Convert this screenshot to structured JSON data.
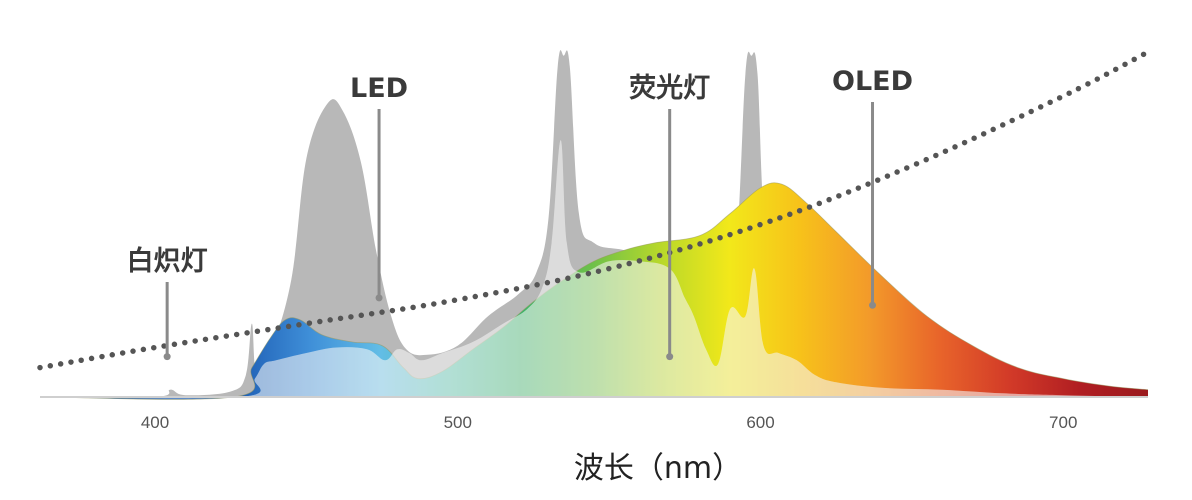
{
  "chart_data": {
    "type": "area",
    "xlabel": "波长（nm）",
    "ylabel": "",
    "xlim": [
      362,
      728
    ],
    "ylim": [
      0,
      100
    ],
    "grid": false,
    "legend": "none",
    "x_ticks": [
      400,
      500,
      600,
      700
    ],
    "series": [
      {
        "name": "白炽灯",
        "style": "dotted",
        "color": "#555555",
        "points": [
          [
            362,
            8
          ],
          [
            400,
            13.5
          ],
          [
            450,
            20
          ],
          [
            500,
            26.5
          ],
          [
            550,
            35
          ],
          [
            600,
            47
          ],
          [
            650,
            63
          ],
          [
            700,
            82
          ],
          [
            728,
            94
          ]
        ]
      },
      {
        "name": "LED",
        "style": "filled",
        "color": "#b8b8b8",
        "points": [
          [
            362,
            0
          ],
          [
            400,
            0
          ],
          [
            405,
            2
          ],
          [
            410,
            0.5
          ],
          [
            425,
            1.5
          ],
          [
            430,
            6
          ],
          [
            432,
            20
          ],
          [
            433.5,
            6
          ],
          [
            438,
            12
          ],
          [
            445,
            32
          ],
          [
            450,
            65
          ],
          [
            457,
            80
          ],
          [
            462,
            78
          ],
          [
            468,
            64
          ],
          [
            473,
            40
          ],
          [
            478,
            22
          ],
          [
            483,
            13
          ],
          [
            490,
            11.5
          ],
          [
            500,
            14
          ],
          [
            510,
            22
          ],
          [
            520,
            28
          ],
          [
            526,
            34
          ],
          [
            530,
            49
          ],
          [
            533,
            90
          ],
          [
            535,
            93
          ],
          [
            537,
            90
          ],
          [
            540,
            50
          ],
          [
            545,
            42
          ],
          [
            555,
            40
          ],
          [
            570,
            37
          ],
          [
            580,
            33
          ],
          [
            588,
            31
          ],
          [
            592,
            40
          ],
          [
            595,
            88
          ],
          [
            597,
            93
          ],
          [
            599,
            88
          ],
          [
            602,
            42
          ],
          [
            610,
            33
          ],
          [
            620,
            25
          ],
          [
            640,
            14
          ],
          [
            660,
            9
          ],
          [
            680,
            5
          ],
          [
            700,
            2.5
          ],
          [
            728,
            0.5
          ]
        ]
      },
      {
        "name": "荧光灯",
        "style": "filled",
        "color": "#d9d9d9",
        "points": [
          [
            362,
            0
          ],
          [
            428,
            0
          ],
          [
            433,
            5
          ],
          [
            436,
            9
          ],
          [
            440,
            10
          ],
          [
            450,
            12
          ],
          [
            460,
            13.5
          ],
          [
            470,
            13
          ],
          [
            476,
            10
          ],
          [
            480,
            13
          ],
          [
            484,
            12
          ],
          [
            488,
            10
          ],
          [
            495,
            12
          ],
          [
            505,
            15
          ],
          [
            515,
            20
          ],
          [
            523,
            24
          ],
          [
            528,
            30
          ],
          [
            531,
            42
          ],
          [
            534,
            70
          ],
          [
            536,
            42
          ],
          [
            540,
            34
          ],
          [
            550,
            37
          ],
          [
            560,
            37
          ],
          [
            570,
            35
          ],
          [
            575,
            27
          ],
          [
            578,
            22
          ],
          [
            582,
            13
          ],
          [
            586,
            9
          ],
          [
            590,
            24
          ],
          [
            595,
            22
          ],
          [
            598,
            35
          ],
          [
            601,
            14
          ],
          [
            606,
            12
          ],
          [
            612,
            10
          ],
          [
            618,
            6
          ],
          [
            625,
            4
          ],
          [
            640,
            2.5
          ],
          [
            660,
            2
          ],
          [
            680,
            1
          ],
          [
            700,
            0.5
          ],
          [
            728,
            0
          ]
        ]
      },
      {
        "name": "OLED",
        "style": "gradient-filled",
        "color": "#f5d000",
        "points": [
          [
            362,
            0
          ],
          [
            426,
            0
          ],
          [
            432,
            8
          ],
          [
            438,
            16
          ],
          [
            443,
            21
          ],
          [
            448,
            21
          ],
          [
            455,
            17
          ],
          [
            465,
            15
          ],
          [
            475,
            14
          ],
          [
            482,
            8
          ],
          [
            487,
            5
          ],
          [
            495,
            7
          ],
          [
            505,
            13
          ],
          [
            515,
            19
          ],
          [
            525,
            26
          ],
          [
            535,
            32
          ],
          [
            545,
            37
          ],
          [
            555,
            40
          ],
          [
            565,
            42
          ],
          [
            580,
            44
          ],
          [
            590,
            50
          ],
          [
            600,
            57
          ],
          [
            607,
            58
          ],
          [
            615,
            53
          ],
          [
            625,
            45
          ],
          [
            640,
            33
          ],
          [
            655,
            22
          ],
          [
            670,
            14
          ],
          [
            685,
            8
          ],
          [
            700,
            5
          ],
          [
            715,
            3
          ],
          [
            728,
            2
          ]
        ]
      }
    ],
    "annotations": [
      {
        "text": "白炽灯",
        "points_to": [
          404,
          11
        ]
      },
      {
        "text": "LED",
        "points_to": [
          474,
          27
        ]
      },
      {
        "text": "荧光灯",
        "points_to": [
          570,
          11
        ]
      },
      {
        "text": "OLED",
        "points_to": [
          637,
          25
        ]
      }
    ],
    "spectrum_colors": [
      "#1f5fb5",
      "#3f8fd8",
      "#62bde6",
      "#52c0a8",
      "#3bb36a",
      "#6cc04a",
      "#b8d82a",
      "#f2e81a",
      "#f7c21a",
      "#f39a2a",
      "#e8642a",
      "#d23a28",
      "#b01e22",
      "#9a1a1e"
    ],
    "axis_color": "#cfcfcf"
  }
}
